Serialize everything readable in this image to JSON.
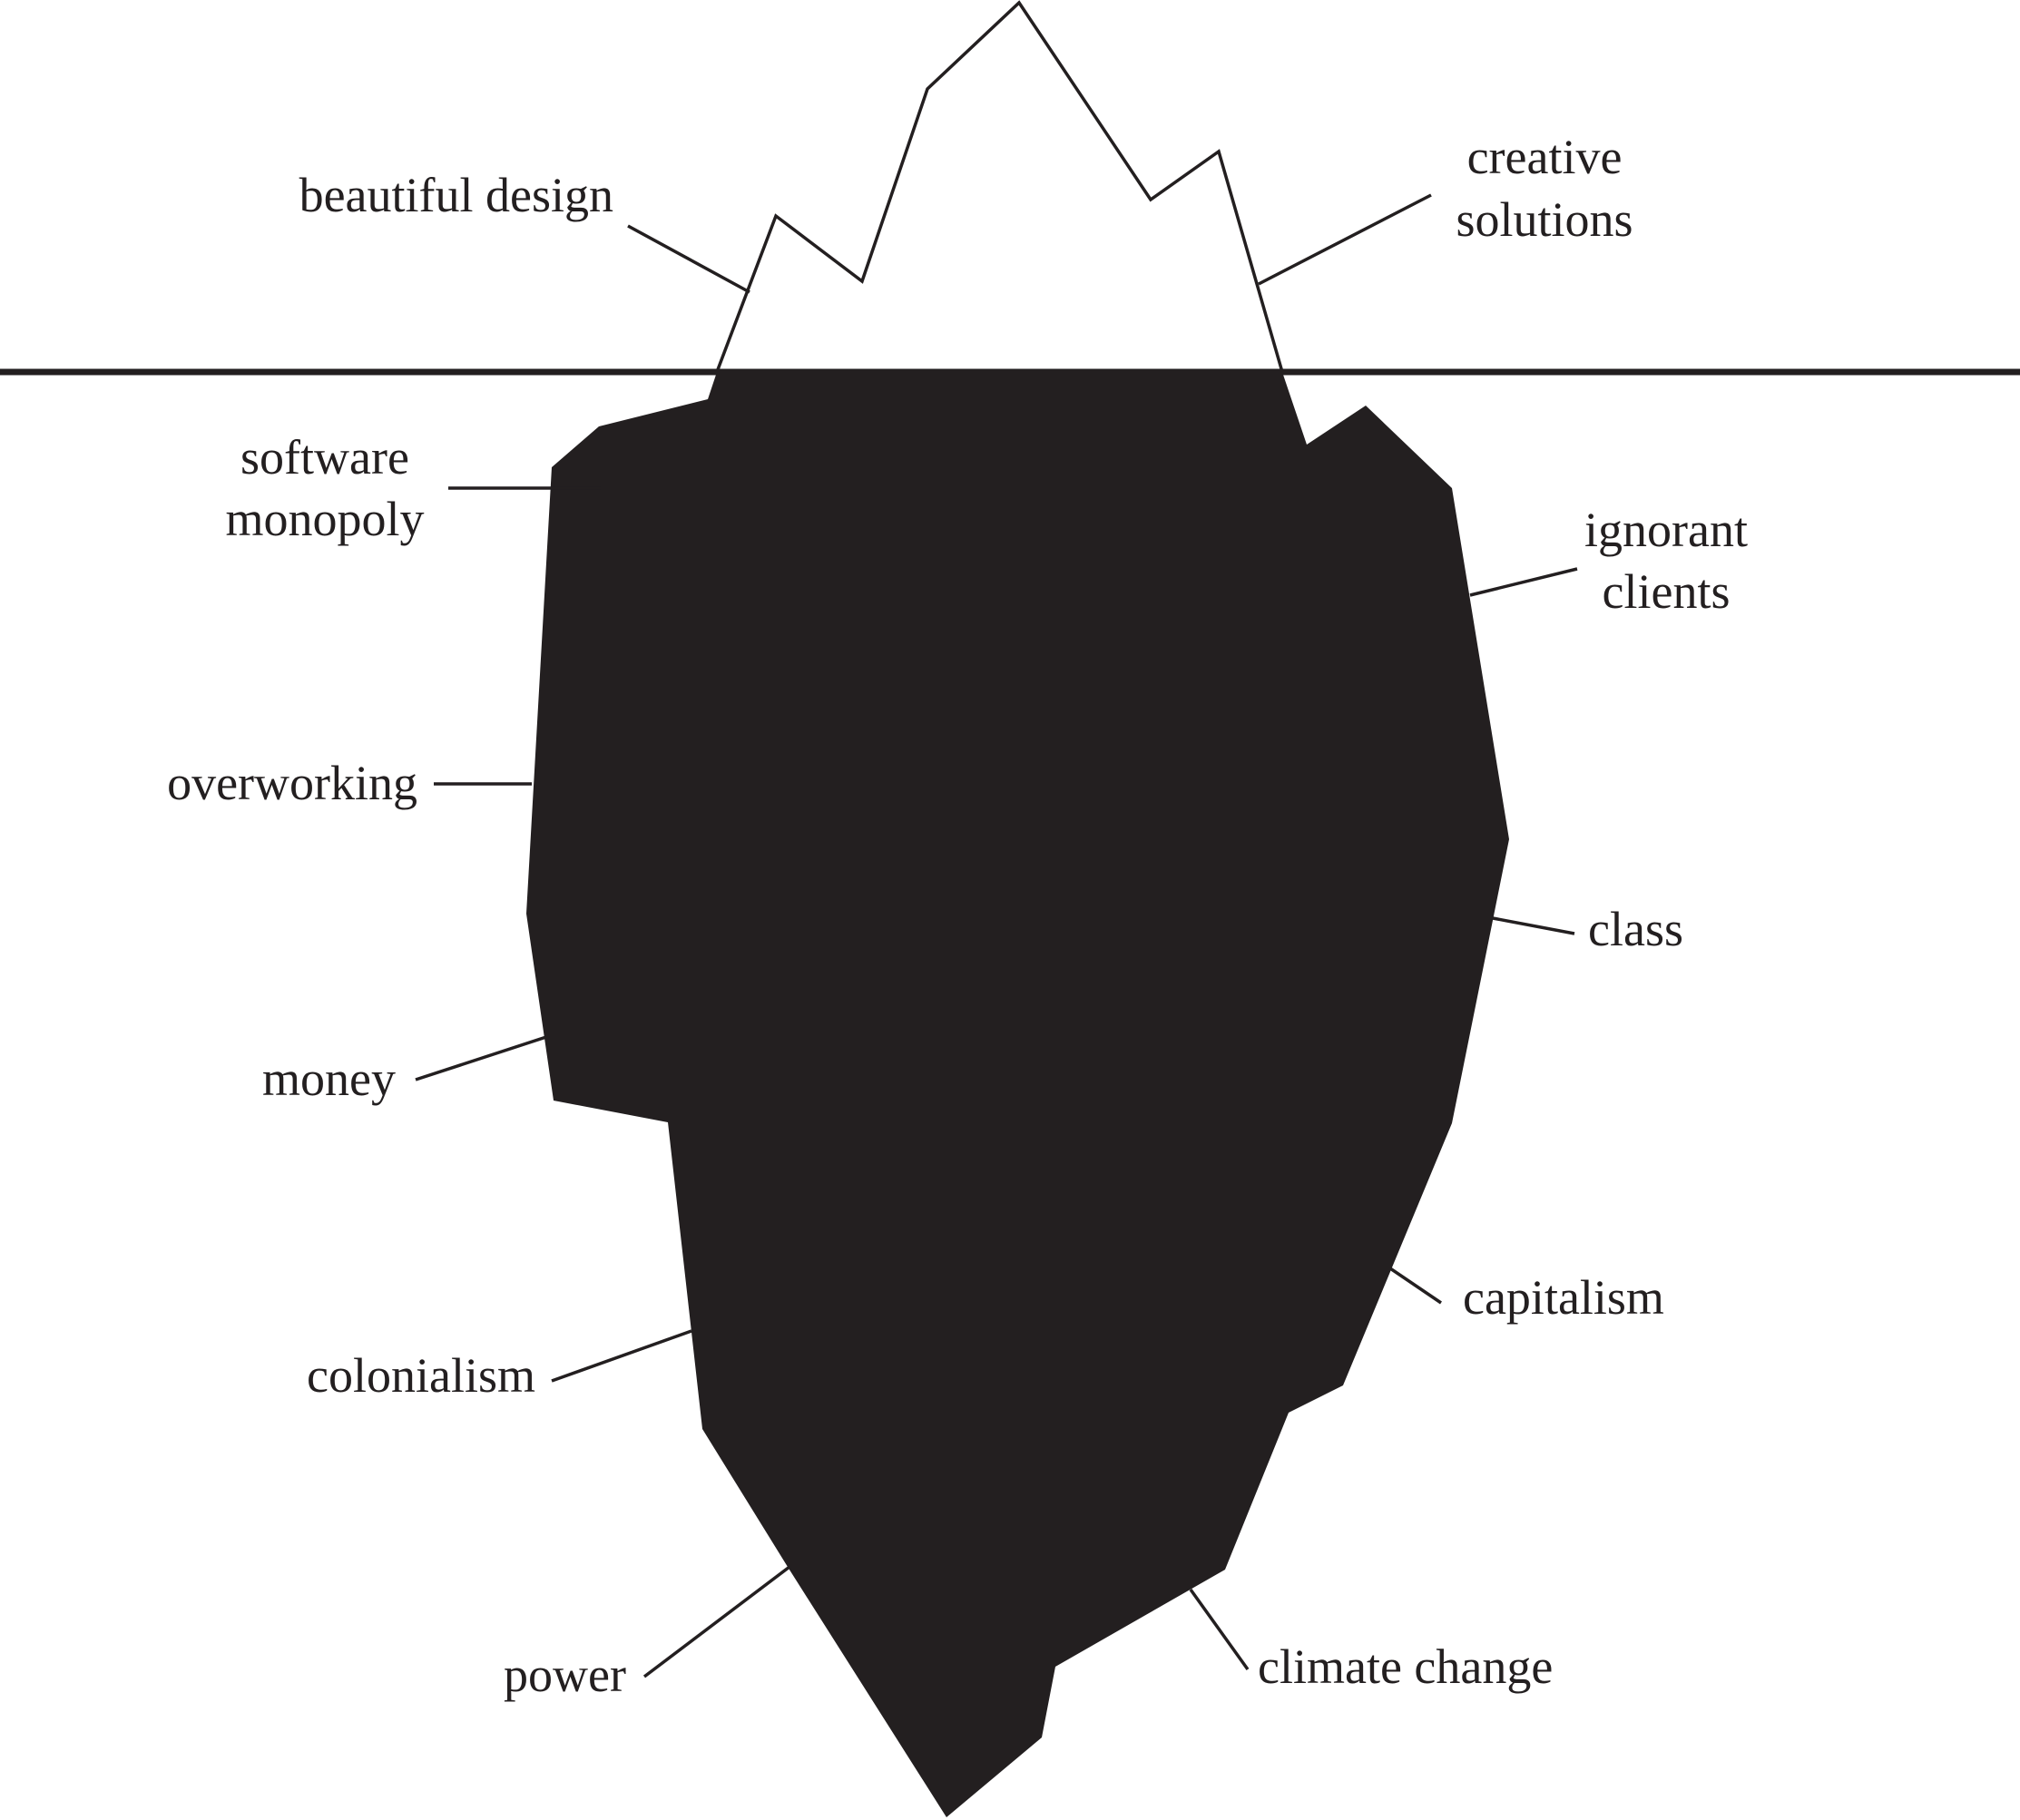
{
  "colors": {
    "ink": "#231f20",
    "background": "#ffffff"
  },
  "above_water": {
    "left_label": "beautiful design",
    "right_label_line1": "creative",
    "right_label_line2": "solutions"
  },
  "below_water": {
    "software_monopoly_line1": "software",
    "software_monopoly_line2": "monopoly",
    "ignorant_clients_line1": "ignorant",
    "ignorant_clients_line2": "clients",
    "overworking": "overworking",
    "class": "class",
    "money": "money",
    "capitalism": "capitalism",
    "colonialism": "colonialism",
    "power": "power",
    "climate_change": "climate change"
  }
}
